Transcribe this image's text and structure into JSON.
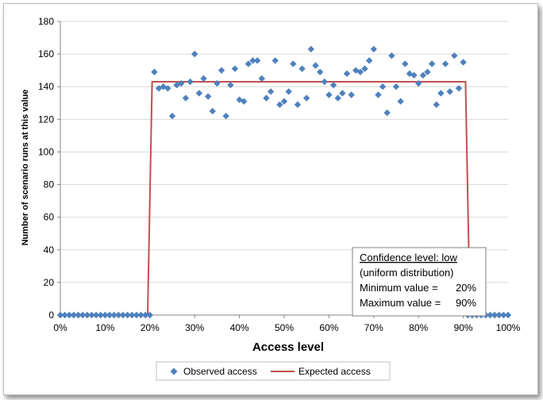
{
  "chart_data": {
    "type": "scatter",
    "xlabel": "Access level",
    "ylabel": "Number of scenario runs at this value",
    "xlim": [
      0,
      100
    ],
    "ylim": [
      0,
      180
    ],
    "x_ticks": [
      "0%",
      "10%",
      "20%",
      "30%",
      "40%",
      "50%",
      "60%",
      "70%",
      "80%",
      "90%",
      "100%"
    ],
    "y_ticks": [
      "0",
      "20",
      "40",
      "60",
      "80",
      "100",
      "120",
      "140",
      "160",
      "180"
    ],
    "grid": "horizontal",
    "legend_position": "bottom",
    "series": [
      {
        "name": "Observed access",
        "marker": "diamond",
        "color": "#4F81BD",
        "x": [
          0,
          1,
          2,
          3,
          4,
          5,
          6,
          7,
          8,
          9,
          10,
          11,
          12,
          13,
          14,
          15,
          16,
          17,
          18,
          19,
          20,
          21,
          22,
          23,
          24,
          25,
          26,
          27,
          28,
          29,
          30,
          31,
          32,
          33,
          34,
          35,
          36,
          37,
          38,
          39,
          40,
          41,
          42,
          43,
          44,
          45,
          46,
          47,
          48,
          49,
          50,
          51,
          52,
          53,
          54,
          55,
          56,
          57,
          58,
          59,
          60,
          61,
          62,
          63,
          64,
          65,
          66,
          67,
          68,
          69,
          70,
          71,
          72,
          73,
          74,
          75,
          76,
          77,
          78,
          79,
          80,
          81,
          82,
          83,
          84,
          85,
          86,
          87,
          88,
          89,
          90,
          91,
          92,
          93,
          94,
          95,
          96,
          97,
          98,
          99,
          100
        ],
        "y": [
          0,
          0,
          0,
          0,
          0,
          0,
          0,
          0,
          0,
          0,
          0,
          0,
          0,
          0,
          0,
          0,
          0,
          0,
          0,
          0,
          0,
          149,
          139,
          140,
          139,
          122,
          141,
          142,
          133,
          143,
          160,
          136,
          145,
          134,
          125,
          142,
          150,
          122,
          141,
          151,
          132,
          131,
          154,
          156,
          156,
          145,
          133,
          137,
          156,
          129,
          131,
          137,
          154,
          129,
          151,
          133,
          163,
          153,
          149,
          143,
          135,
          141,
          133,
          136,
          148,
          135,
          150,
          149,
          151,
          156,
          163,
          135,
          140,
          124,
          159,
          140,
          131,
          154,
          148,
          147,
          142,
          147,
          149,
          154,
          129,
          136,
          154,
          137,
          159,
          139,
          155,
          0,
          0,
          0,
          0,
          0,
          0,
          0,
          0,
          0,
          0
        ]
      },
      {
        "name": "Expected access",
        "type": "line",
        "color": "#C0504D",
        "x": [
          0,
          19.5,
          20.5,
          90.5,
          91.5,
          100
        ],
        "y": [
          0,
          0,
          143,
          143,
          0,
          0
        ]
      }
    ],
    "annotation": {
      "title": "Confidence level: low",
      "subtitle": "(uniform distribution)",
      "min_label": "Minimum value =",
      "min_value": "20%",
      "max_label": "Maximum value =",
      "max_value": "90%"
    }
  }
}
